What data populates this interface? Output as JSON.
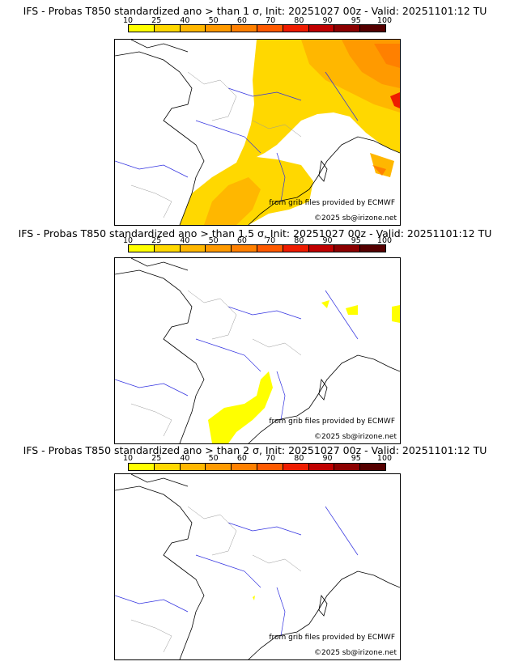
{
  "colorbar": {
    "ticks": [
      "10",
      "25",
      "40",
      "50",
      "60",
      "70",
      "80",
      "90",
      "95",
      "100"
    ],
    "colors": [
      "#ffff00",
      "#ffd800",
      "#ffb700",
      "#ff9a00",
      "#ff8000",
      "#ff5a00",
      "#ee1c00",
      "#c00000",
      "#8c0000",
      "#550000"
    ]
  },
  "credits": {
    "source": "from grib files provided by ECMWF",
    "copyright": "©2025 sb@irizone.net"
  },
  "panels": [
    {
      "title": "IFS - Probas T850  standardized ano > than 1 σ, Init: 20251027 00z - Valid: 20251101:12 TU"
    },
    {
      "title": "IFS - Probas T850  standardized ano > than 1.5 σ, Init: 20251027 00z - Valid: 20251101:12 TU"
    },
    {
      "title": "IFS - Probas T850  standardized ano > than 2 σ, Init: 20251027 00z - Valid: 20251101:12 TU"
    }
  ]
}
